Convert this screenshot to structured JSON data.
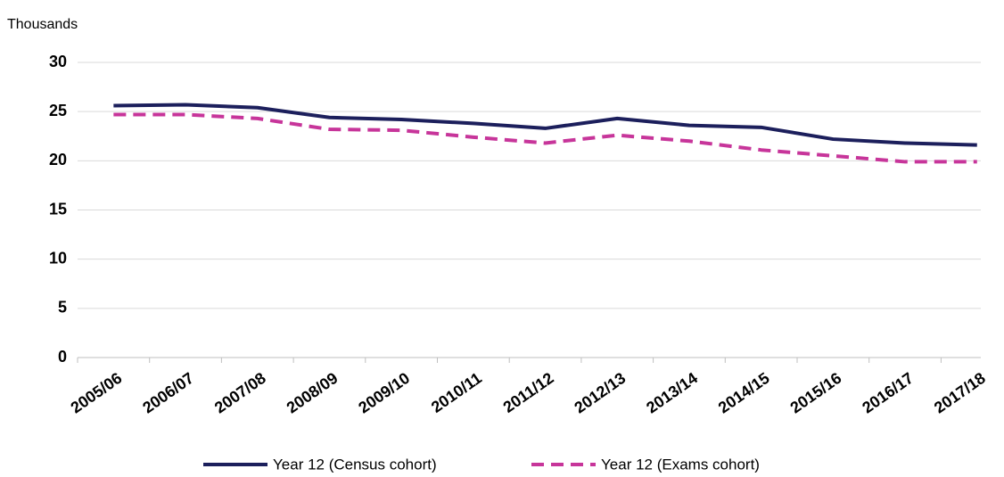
{
  "chart_data": {
    "type": "line",
    "y_axis_label": "Thousands",
    "categories": [
      "2005/06",
      "2006/07",
      "2007/08",
      "2008/09",
      "2009/10",
      "2010/11",
      "2011/12",
      "2012/13",
      "2013/14",
      "2014/15",
      "2015/16",
      "2016/17",
      "2017/18"
    ],
    "series": [
      {
        "name": "Year 12 (Census cohort)",
        "color": "#1c1f5c",
        "dashed": false,
        "values": [
          25.6,
          25.7,
          25.4,
          24.4,
          24.2,
          23.8,
          23.3,
          24.3,
          23.6,
          23.4,
          22.2,
          21.8,
          21.6
        ]
      },
      {
        "name": "Year 12 (Exams cohort)",
        "color": "#c7359a",
        "dashed": true,
        "values": [
          24.7,
          24.7,
          24.3,
          23.2,
          23.1,
          22.4,
          21.8,
          22.6,
          22.0,
          21.1,
          20.5,
          19.9,
          19.9
        ]
      }
    ],
    "ylim": [
      0,
      30
    ],
    "yticks": [
      0,
      5,
      10,
      15,
      20,
      25,
      30
    ],
    "grid": true,
    "legend": "bottom"
  }
}
